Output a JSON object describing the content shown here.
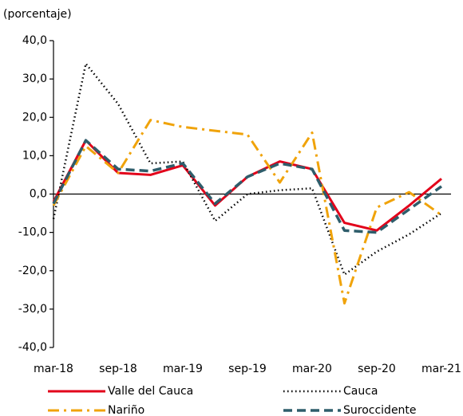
{
  "chart_data": {
    "type": "line",
    "y_label": "(porcentaje)",
    "categories": [
      "mar-18",
      null,
      "sep-18",
      null,
      "mar-19",
      null,
      "sep-19",
      null,
      "mar-20",
      null,
      "sep-20",
      null,
      "mar-21"
    ],
    "ylim": [
      -40,
      40
    ],
    "yticks": [
      {
        "value": -40,
        "label": "-40,0"
      },
      {
        "value": -30,
        "label": "-30,0"
      },
      {
        "value": -20,
        "label": "-20,0"
      },
      {
        "value": -10,
        "label": "-10,0"
      },
      {
        "value": 0,
        "label": "0,0"
      },
      {
        "value": 10,
        "label": "10,0"
      },
      {
        "value": 20,
        "label": "20,0"
      },
      {
        "value": 30,
        "label": "30,0"
      },
      {
        "value": 40,
        "label": "40,0"
      }
    ],
    "series": [
      {
        "name": "Valle del Cauca",
        "color": "#e2001a",
        "line_style": "solid",
        "values": [
          -2,
          14,
          5.5,
          5,
          7.5,
          -3,
          4.5,
          8.5,
          6.5,
          -7.5,
          -9.5,
          -3,
          4
        ]
      },
      {
        "name": "Cauca",
        "color": "#000000",
        "line_style": "dotted",
        "values": [
          -6.5,
          34,
          23.5,
          8,
          8.5,
          -7,
          0,
          1,
          1.5,
          -21,
          -15,
          -10.5,
          -5
        ]
      },
      {
        "name": "Nariño",
        "color": "#f0a30a",
        "line_style": "dashdot",
        "values": [
          -3,
          12.5,
          5.5,
          19.3,
          17.5,
          16.5,
          15.5,
          3,
          16,
          -28.5,
          -3.5,
          0.5,
          -5.5
        ]
      },
      {
        "name": "Suroccidente",
        "color": "#2e5d6b",
        "line_style": "dashed",
        "values": [
          -2.5,
          14,
          6.5,
          6,
          8,
          -2.5,
          4.5,
          8,
          6.5,
          -9.5,
          -10,
          -4,
          2
        ]
      }
    ]
  }
}
